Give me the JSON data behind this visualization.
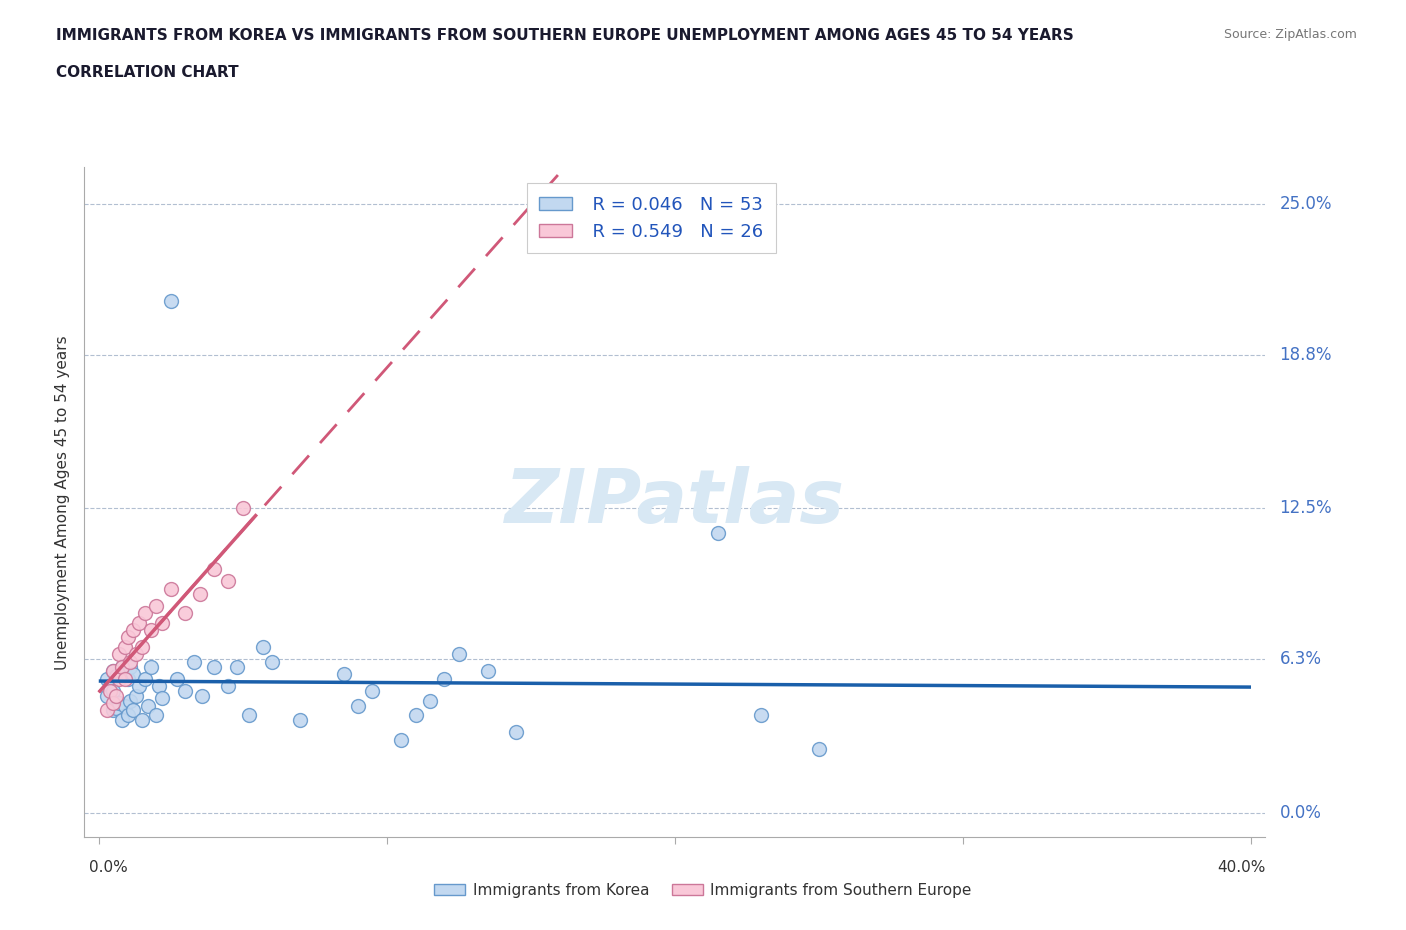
{
  "title_line1": "IMMIGRANTS FROM KOREA VS IMMIGRANTS FROM SOUTHERN EUROPE UNEMPLOYMENT AMONG AGES 45 TO 54 YEARS",
  "title_line2": "CORRELATION CHART",
  "source": "Source: ZipAtlas.com",
  "ylabel": "Unemployment Among Ages 45 to 54 years",
  "legend_r1": "R = 0.046",
  "legend_n1": "N = 53",
  "legend_r2": "R = 0.549",
  "legend_n2": "N = 26",
  "color_korea_face": "#c2d8f0",
  "color_korea_edge": "#6699cc",
  "color_se_face": "#f9c8d8",
  "color_se_edge": "#cc7799",
  "color_korea_line": "#1a5faa",
  "color_se_line": "#d05878",
  "watermark_color": "#dde8f4",
  "ytick_vals": [
    0.0,
    0.063,
    0.125,
    0.188,
    0.25
  ],
  "ytick_labels": [
    "0.0%",
    "6.3%",
    "12.5%",
    "18.8%",
    "25.0%"
  ],
  "korea_x": [
    0.003,
    0.003,
    0.004,
    0.005,
    0.005,
    0.005,
    0.006,
    0.006,
    0.007,
    0.008,
    0.008,
    0.009,
    0.009,
    0.01,
    0.01,
    0.011,
    0.011,
    0.012,
    0.012,
    0.013,
    0.014,
    0.015,
    0.016,
    0.017,
    0.018,
    0.02,
    0.021,
    0.022,
    0.025,
    0.027,
    0.03,
    0.033,
    0.036,
    0.04,
    0.045,
    0.048,
    0.052,
    0.057,
    0.06,
    0.07,
    0.085,
    0.09,
    0.095,
    0.105,
    0.11,
    0.115,
    0.12,
    0.125,
    0.135,
    0.145,
    0.215,
    0.23,
    0.25
  ],
  "korea_y": [
    0.048,
    0.055,
    0.052,
    0.042,
    0.05,
    0.058,
    0.043,
    0.056,
    0.045,
    0.038,
    0.06,
    0.044,
    0.057,
    0.04,
    0.055,
    0.046,
    0.06,
    0.042,
    0.057,
    0.048,
    0.052,
    0.038,
    0.055,
    0.044,
    0.06,
    0.04,
    0.052,
    0.047,
    0.21,
    0.055,
    0.05,
    0.062,
    0.048,
    0.06,
    0.052,
    0.06,
    0.04,
    0.068,
    0.062,
    0.038,
    0.057,
    0.044,
    0.05,
    0.03,
    0.04,
    0.046,
    0.055,
    0.065,
    0.058,
    0.033,
    0.115,
    0.04,
    0.026
  ],
  "se_x": [
    0.003,
    0.004,
    0.005,
    0.005,
    0.006,
    0.007,
    0.007,
    0.008,
    0.009,
    0.009,
    0.01,
    0.011,
    0.012,
    0.013,
    0.014,
    0.015,
    0.016,
    0.018,
    0.02,
    0.022,
    0.025,
    0.03,
    0.035,
    0.04,
    0.045,
    0.05
  ],
  "se_y": [
    0.042,
    0.05,
    0.045,
    0.058,
    0.048,
    0.055,
    0.065,
    0.06,
    0.055,
    0.068,
    0.072,
    0.062,
    0.075,
    0.065,
    0.078,
    0.068,
    0.082,
    0.075,
    0.085,
    0.078,
    0.092,
    0.082,
    0.09,
    0.1,
    0.095,
    0.125
  ]
}
